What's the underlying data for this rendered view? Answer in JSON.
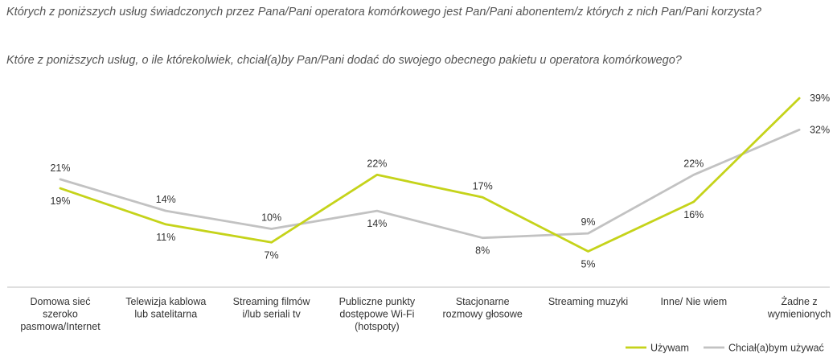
{
  "questions": {
    "q1": "Których z poniższych usług świadczonych przez Pana/Pani operatora komórkowego jest Pan/Pani abonentem/z których z nich Pan/Pani korzysta?",
    "q2": "Które z poniższych usług, o ile którekolwiek, chciał(a)by Pan/Pani dodać do swojego obecnego pakietu u operatora komórkowego?"
  },
  "colors": {
    "uzywam": "#c5d31a",
    "chcialbym": "#c2c2c2",
    "axis": "#bfbfbf"
  },
  "chart_data": {
    "type": "line",
    "categories": [
      [
        "Domowa sieć",
        "szeroko",
        "pasmowa/Internet"
      ],
      [
        "Telewizja kablowa",
        "lub satelitarna"
      ],
      [
        "Streaming filmów",
        "i/lub seriali tv"
      ],
      [
        "Publiczne punkty",
        "dostępowe Wi-Fi",
        "(hotspoty)"
      ],
      [
        "Stacjonarne",
        "rozmowy głosowe"
      ],
      [
        "Streaming muzyki"
      ],
      [
        "Inne/ Nie wiem"
      ],
      [
        "Żadne z",
        "wymienionych"
      ]
    ],
    "series": [
      {
        "name": "Używam",
        "values": [
          19,
          11,
          7,
          22,
          17,
          5,
          16,
          39
        ],
        "labels": [
          "19%",
          "11%",
          "7%",
          "22%",
          "17%",
          "5%",
          "16%",
          "39%"
        ]
      },
      {
        "name": "Chciał(a)bym używać",
        "values": [
          21,
          14,
          10,
          14,
          8,
          9,
          22,
          32
        ],
        "labels": [
          "21%",
          "14%",
          "10%",
          "14%",
          "8%",
          "9%",
          "22%",
          "32%"
        ]
      }
    ],
    "legend_position": "bottom-right",
    "grid": false
  }
}
